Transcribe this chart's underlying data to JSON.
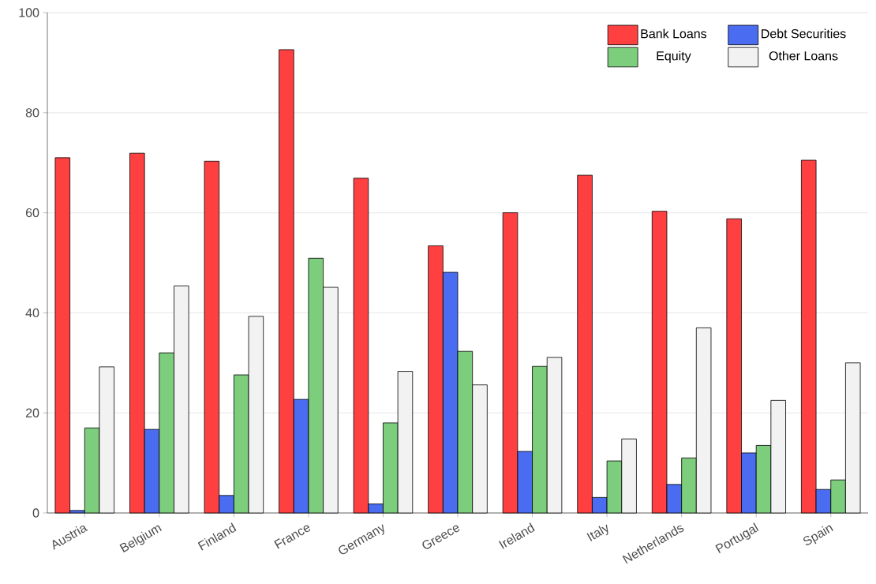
{
  "chart_data": {
    "type": "bar",
    "categories": [
      "Austria",
      "Belgium",
      "Finland",
      "France",
      "Germany",
      "Greece",
      "Ireland",
      "Italy",
      "Netherlands",
      "Portugal",
      "Spain"
    ],
    "series": [
      {
        "name": "Bank Loans",
        "color": "#ff4040",
        "values": [
          71.0,
          71.9,
          70.3,
          92.6,
          66.9,
          53.4,
          60.0,
          67.5,
          60.3,
          58.8,
          70.5
        ]
      },
      {
        "name": "Debt Securities",
        "color": "#4a6cf0",
        "values": [
          0.5,
          16.7,
          3.5,
          22.7,
          1.8,
          48.1,
          12.3,
          3.1,
          5.7,
          12.0,
          4.7
        ]
      },
      {
        "name": "Equity",
        "color": "#7ccd7c",
        "values": [
          17.0,
          32.0,
          27.6,
          50.9,
          18.0,
          32.3,
          29.3,
          10.4,
          11.0,
          13.5,
          6.6
        ]
      },
      {
        "name": "Other Loans",
        "color": "#f2f2f2",
        "values": [
          29.2,
          45.4,
          39.3,
          45.1,
          28.3,
          25.6,
          31.1,
          14.8,
          37.0,
          22.5,
          30.0
        ]
      }
    ],
    "ylim": [
      0,
      100
    ],
    "yticks": [
      0,
      20,
      40,
      60,
      80,
      100
    ],
    "grid": "y",
    "legend": "top right"
  }
}
